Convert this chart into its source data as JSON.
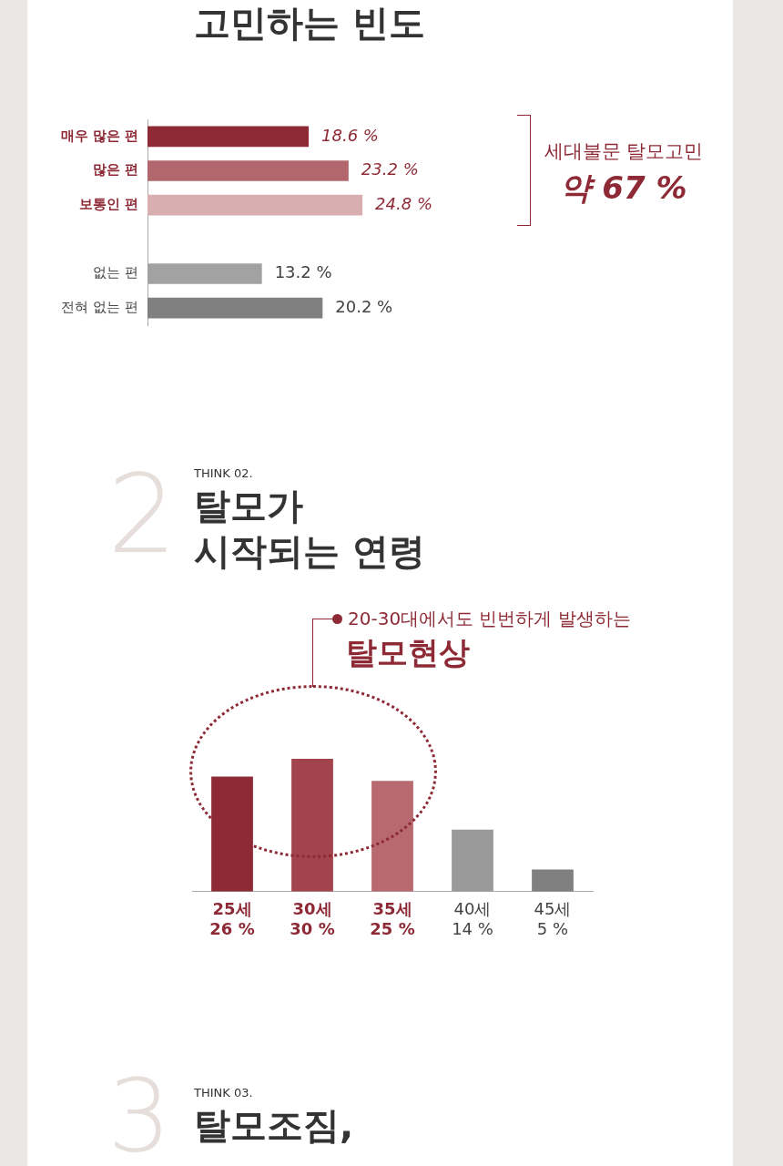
{
  "chart_data": [
    {
      "type": "bar",
      "orientation": "horizontal",
      "title": "고민하는 빈도",
      "categories": [
        "매우 많은 편",
        "많은 편",
        "보통인 편",
        null,
        "없는 편",
        "전혀 없는 편"
      ],
      "values": [
        18.6,
        23.2,
        24.8,
        null,
        13.2,
        20.2
      ],
      "colors": [
        "#8e2a35",
        "#b2676e",
        "#d9aeb1",
        "#ffffff",
        "#a2a2a2",
        "#808080"
      ],
      "value_labels": [
        "18.6 %",
        "23.2 %",
        "24.8 %",
        null,
        "13.2 %",
        "20.2 %"
      ],
      "annotations": [
        "세대불문 탈모고민",
        "약 67 %"
      ]
    },
    {
      "type": "bar",
      "subtitle": "THINK 02.",
      "title": "탈모가\n시작되는 연령",
      "categories": [
        "25세",
        "30세",
        "35세",
        "40세",
        "45세"
      ],
      "values": [
        26,
        30,
        25,
        14,
        5
      ],
      "colors": [
        "#8e2a35",
        "#a3434b",
        "#b7696f",
        "#9a9a9a",
        "#808080"
      ],
      "value_labels": [
        "26 %",
        "30 %",
        "25 %",
        "14 %",
        "5 %"
      ],
      "annotations": [
        "2",
        "20-30대에서도 빈번하게 발생하는",
        "탈모현상"
      ]
    },
    {
      "type": "other",
      "subtitle": "THINK 03.",
      "title": "탈모조짐,",
      "annotations": [
        "3"
      ]
    }
  ]
}
